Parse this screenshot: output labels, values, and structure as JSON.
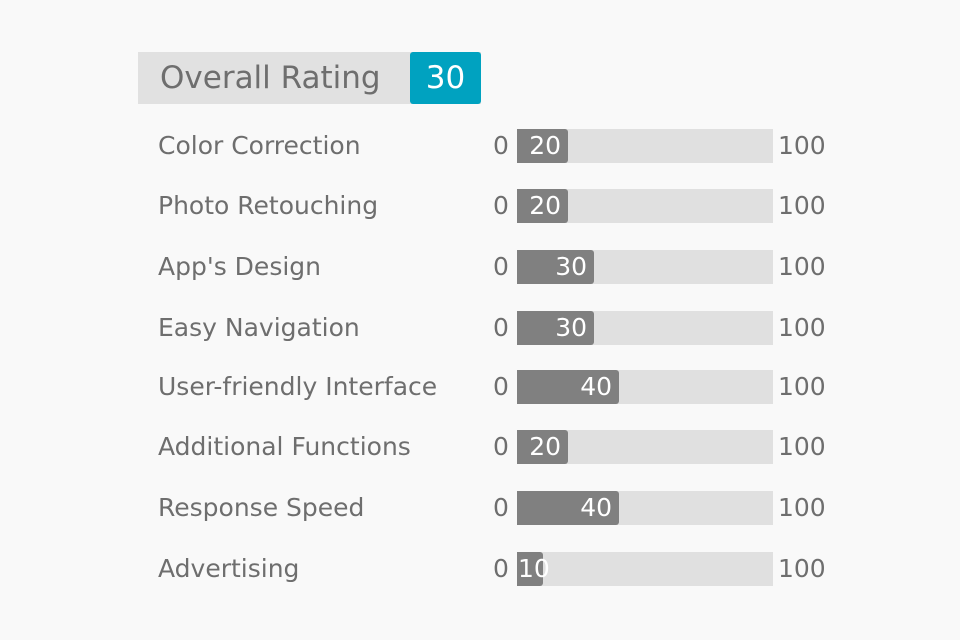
{
  "overall": {
    "title": "Overall Rating",
    "score": "30"
  },
  "scale": {
    "min": "0",
    "max": "100"
  },
  "criteria": [
    {
      "label": "Color Correction",
      "value": 20
    },
    {
      "label": "Photo Retouching",
      "value": 20
    },
    {
      "label": "App's Design",
      "value": 30
    },
    {
      "label": "Easy Navigation",
      "value": 30
    },
    {
      "label": "User-friendly Interface",
      "value": 40
    },
    {
      "label": "Additional Functions",
      "value": 20
    },
    {
      "label": "Response Speed",
      "value": 40
    },
    {
      "label": "Advertising",
      "value": 10
    }
  ],
  "colors": {
    "accent": "#00a2c0",
    "fill": "#808080",
    "track": "#e0e0e0",
    "text": "#6e6e6e"
  }
}
